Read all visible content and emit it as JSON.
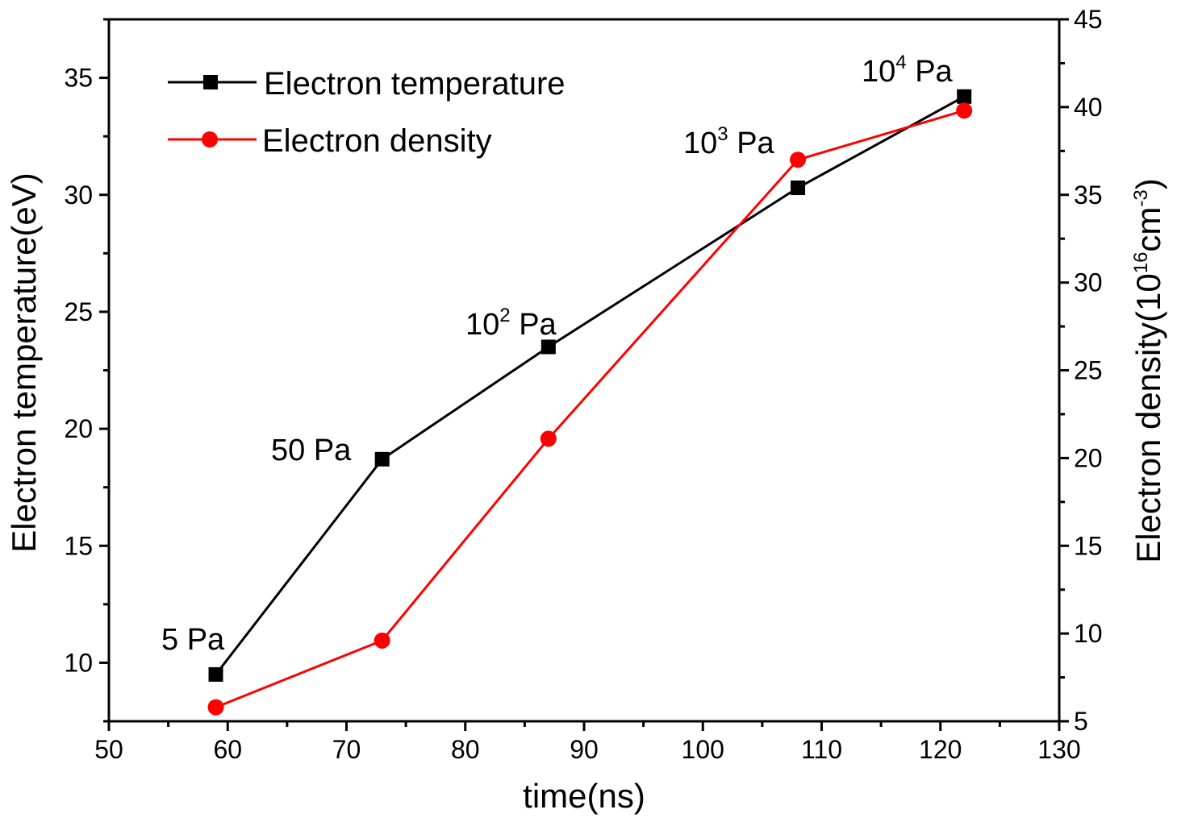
{
  "chart_data": {
    "type": "line",
    "x": {
      "label": "time(ns)",
      "lim": [
        50,
        130
      ],
      "ticks": [
        50,
        60,
        70,
        80,
        90,
        100,
        110,
        120,
        130
      ],
      "minor_step": 5
    },
    "y_left": {
      "label": "Electron temperature(eV)",
      "lim": [
        7.5,
        37.5
      ],
      "ticks": [
        10,
        15,
        20,
        25,
        30,
        35
      ],
      "minor_step": 2.5
    },
    "y_right": {
      "label_base": "Electron density(10",
      "label_sup1": "16",
      "label_mid": "cm",
      "label_sup2": "-3",
      "label_end": ")",
      "lim": [
        5,
        45
      ],
      "ticks": [
        5,
        10,
        15,
        20,
        25,
        30,
        35,
        40,
        45
      ],
      "minor_step": 2.5
    },
    "series": [
      {
        "name": "Electron temperature",
        "axis": "left",
        "color": "#000000",
        "marker": "square",
        "x": [
          59,
          73,
          87,
          108,
          122
        ],
        "y": [
          9.5,
          18.7,
          23.5,
          30.3,
          34.2
        ]
      },
      {
        "name": "Electron density",
        "axis": "right",
        "color": "#ff0000",
        "marker": "circle",
        "x": [
          59,
          73,
          87,
          108,
          122
        ],
        "y": [
          5.8,
          9.6,
          21.1,
          37.0,
          39.8
        ]
      }
    ],
    "legend": {
      "placement": "top-left"
    },
    "annotations": [
      {
        "base": "5 Pa",
        "sup": "",
        "tail": ""
      },
      {
        "base": "50 Pa",
        "sup": "",
        "tail": ""
      },
      {
        "base": "10",
        "sup": "2",
        "tail": " Pa"
      },
      {
        "base": "10",
        "sup": "3",
        "tail": " Pa"
      },
      {
        "base": "10",
        "sup": "4",
        "tail": " Pa"
      }
    ],
    "grid": false
  }
}
